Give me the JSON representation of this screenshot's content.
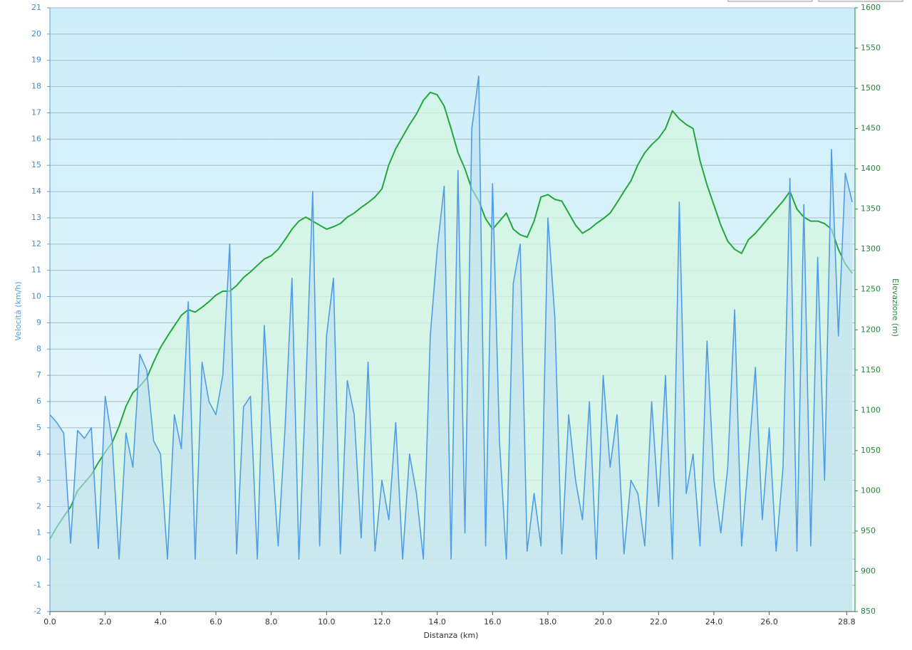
{
  "chart_data": {
    "type": "line",
    "xlabel": "Distanza  (km)",
    "ylabel": "Velocità (km/h)",
    "y2label": "Elevazione (m)",
    "x": [
      0,
      0.25,
      0.5,
      0.75,
      1,
      1.25,
      1.5,
      1.75,
      2,
      2.25,
      2.5,
      2.75,
      3,
      3.25,
      3.5,
      3.75,
      4,
      4.25,
      4.5,
      4.75,
      5,
      5.25,
      5.5,
      5.75,
      6,
      6.25,
      6.5,
      6.75,
      7,
      7.25,
      7.5,
      7.75,
      8,
      8.25,
      8.5,
      8.75,
      9,
      9.25,
      9.5,
      9.75,
      10,
      10.25,
      10.5,
      10.75,
      11,
      11.25,
      11.5,
      11.75,
      12,
      12.25,
      12.5,
      12.75,
      13,
      13.25,
      13.5,
      13.75,
      14,
      14.25,
      14.5,
      14.75,
      15,
      15.25,
      15.5,
      15.75,
      16,
      16.25,
      16.5,
      16.75,
      17,
      17.25,
      17.5,
      17.75,
      18,
      18.25,
      18.5,
      18.75,
      19,
      19.25,
      19.5,
      19.75,
      20,
      20.25,
      20.5,
      20.75,
      21,
      21.25,
      21.5,
      21.75,
      22,
      22.25,
      22.5,
      22.75,
      23,
      23.25,
      23.5,
      23.75,
      24,
      24.25,
      24.5,
      24.75,
      25,
      25.25,
      25.5,
      25.75,
      26,
      26.25,
      26.5,
      26.75,
      27,
      27.25,
      27.5,
      27.75,
      28,
      28.25,
      28.5,
      28.75,
      29
    ],
    "series": [
      {
        "name": "Velocità",
        "color": "#4f9de6",
        "fill": "#bfe0f2",
        "values": [
          5.5,
          5.2,
          4.8,
          0.6,
          4.9,
          4.6,
          5.0,
          0.4,
          6.2,
          4.5,
          0,
          4.8,
          3.5,
          7.8,
          7.2,
          4.5,
          4.0,
          0,
          5.5,
          4.2,
          9.8,
          0,
          7.5,
          6.0,
          5.5,
          7.0,
          12.0,
          0.2,
          5.8,
          6.2,
          0,
          8.9,
          4.5,
          0.5,
          5.0,
          10.7,
          0,
          6.5,
          14.0,
          0.5,
          8.5,
          10.7,
          0.2,
          6.8,
          5.5,
          0.8,
          7.5,
          0.3,
          3.0,
          1.5,
          5.2,
          0,
          4.0,
          2.5,
          0,
          8.5,
          11.8,
          14.2,
          0,
          14.8,
          1.0,
          16.4,
          18.4,
          0.5,
          14.3,
          4.5,
          0,
          10.5,
          12.0,
          0.3,
          2.5,
          0.5,
          13.0,
          9.2,
          0.2,
          5.5,
          3.0,
          1.5,
          6.0,
          0,
          7.0,
          3.5,
          5.5,
          0.2,
          3.0,
          2.5,
          0.5,
          6.0,
          2.0,
          7.0,
          0,
          13.6,
          2.5,
          4.0,
          0.5,
          8.3,
          3.0,
          1.0,
          3.5,
          9.5,
          0.5,
          3.8,
          7.3,
          1.5,
          5.0,
          0.3,
          3.5,
          14.5,
          0.3,
          13.5,
          0.5,
          11.5,
          3.0,
          15.6,
          8.5,
          14.7,
          13.6
        ]
      },
      {
        "name": "Elevazione",
        "color": "#22a83a",
        "fill": "#d4f5e0",
        "axis": "y2",
        "values": [
          940,
          955,
          968,
          980,
          1000,
          1010,
          1020,
          1035,
          1048,
          1060,
          1080,
          1105,
          1122,
          1130,
          1140,
          1160,
          1178,
          1192,
          1205,
          1218,
          1225,
          1222,
          1228,
          1235,
          1243,
          1248,
          1248,
          1255,
          1265,
          1272,
          1280,
          1288,
          1292,
          1300,
          1312,
          1325,
          1335,
          1340,
          1335,
          1330,
          1325,
          1328,
          1332,
          1340,
          1345,
          1352,
          1358,
          1365,
          1375,
          1405,
          1425,
          1440,
          1455,
          1468,
          1485,
          1495,
          1492,
          1478,
          1450,
          1420,
          1400,
          1375,
          1360,
          1338,
          1325,
          1335,
          1345,
          1325,
          1318,
          1315,
          1335,
          1365,
          1368,
          1362,
          1360,
          1345,
          1330,
          1320,
          1325,
          1332,
          1338,
          1345,
          1358,
          1372,
          1385,
          1405,
          1420,
          1430,
          1438,
          1450,
          1472,
          1462,
          1455,
          1450,
          1410,
          1380,
          1355,
          1330,
          1310,
          1300,
          1295,
          1312,
          1320,
          1330,
          1340,
          1350,
          1360,
          1372,
          1350,
          1340,
          1335,
          1335,
          1332,
          1325,
          1300,
          1282,
          1270
        ]
      }
    ],
    "xlim": [
      0,
      29.1
    ],
    "xticks": [
      {
        "value": 0,
        "label": "0.0"
      },
      {
        "value": 2,
        "label": "2.0"
      },
      {
        "value": 4,
        "label": "4.0"
      },
      {
        "value": 6,
        "label": "6.0"
      },
      {
        "value": 8,
        "label": "8.0"
      },
      {
        "value": 10,
        "label": "10.0"
      },
      {
        "value": 12,
        "label": "12.0"
      },
      {
        "value": 14,
        "label": "14.0"
      },
      {
        "value": 16,
        "label": "16.0"
      },
      {
        "value": 18,
        "label": "18.0"
      },
      {
        "value": 20,
        "label": "20.0"
      },
      {
        "value": 22,
        "label": "22.0"
      },
      {
        "value": 24,
        "label": "24.0"
      },
      {
        "value": 26,
        "label": "26.0"
      },
      {
        "value": 28.8,
        "label": "28.8"
      }
    ],
    "ylim": [
      -2,
      21
    ],
    "yticks": [
      -2,
      -1,
      0,
      1,
      2,
      3,
      4,
      5,
      6,
      7,
      8,
      9,
      10,
      11,
      12,
      13,
      14,
      15,
      16,
      17,
      18,
      19,
      20,
      21
    ],
    "y2lim": [
      850,
      1600
    ],
    "y2ticks": [
      850,
      900,
      950,
      1000,
      1050,
      1100,
      1150,
      1200,
      1250,
      1300,
      1350,
      1400,
      1450,
      1500,
      1550,
      1600
    ],
    "grid": true
  }
}
